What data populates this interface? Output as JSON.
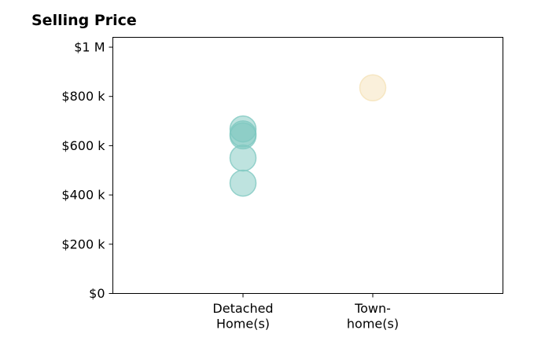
{
  "chart_data": {
    "type": "scatter",
    "title": "Selling Price",
    "xlabel": "",
    "ylabel": "",
    "categories": [
      [
        "Detached",
        "Home(s)"
      ],
      [
        "Town-",
        "home(s)"
      ]
    ],
    "ylim": [
      0,
      1040000
    ],
    "yticks": [
      {
        "value": 0,
        "label": "$0"
      },
      {
        "value": 200000,
        "label": "$200 k"
      },
      {
        "value": 400000,
        "label": "$400 k"
      },
      {
        "value": 600000,
        "label": "$600 k"
      },
      {
        "value": 800000,
        "label": "$800 k"
      },
      {
        "value": 1000000,
        "label": "$1 M"
      }
    ],
    "grid": false,
    "series": [
      {
        "category_index": 0,
        "color": "#7ec8c0",
        "values": [
          448000,
          550000,
          640000,
          648000,
          668000
        ]
      },
      {
        "category_index": 1,
        "color": "#f5e2b8",
        "values": [
          835000
        ]
      }
    ]
  }
}
